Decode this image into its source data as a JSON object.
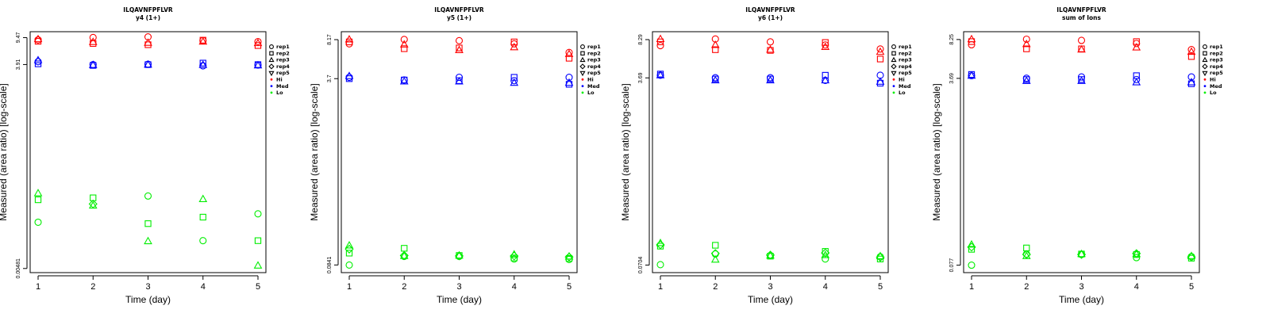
{
  "colors": {
    "Hi": "#ff0000",
    "Med": "#0000ff",
    "Lo": "#00ee00"
  },
  "legend": {
    "reps": [
      {
        "label": "rep1",
        "shape": "circle"
      },
      {
        "label": "rep2",
        "shape": "square"
      },
      {
        "label": "rep3",
        "shape": "triangle-up"
      },
      {
        "label": "rep4",
        "shape": "diamond"
      },
      {
        "label": "rep5",
        "shape": "triangle-down"
      }
    ],
    "groups": [
      {
        "label": "Hi",
        "color": "#ff0000"
      },
      {
        "label": "Med",
        "color": "#0000ff"
      },
      {
        "label": "Lo",
        "color": "#00ee00"
      }
    ]
  },
  "chart_data": [
    {
      "type": "scatter",
      "title": "ILQAVNFPFLVR",
      "subtitle": "y4 (1+)",
      "xlabel": "Time (day)",
      "ylabel": "Measured (area ratio) [log-scale]",
      "x_ticks": [
        "1",
        "2",
        "3",
        "4",
        "5"
      ],
      "y_ticks": [
        "9.47",
        "3.91",
        "0.00481"
      ],
      "y_scale": "log",
      "ylim": [
        0.0042,
        11.5
      ],
      "series": [
        {
          "group": "Hi",
          "shape": "circle",
          "x": [
            1,
            2,
            3,
            4,
            5
          ],
          "y": [
            8.8,
            9.5,
            9.7,
            8.6,
            8.3
          ]
        },
        {
          "group": "Hi",
          "shape": "square",
          "x": [
            1,
            2,
            3,
            4,
            5
          ],
          "y": [
            8.4,
            7.8,
            7.5,
            8.7,
            7.3
          ]
        },
        {
          "group": "Hi",
          "shape": "triangle-up",
          "x": [
            1,
            2,
            3,
            4,
            5
          ],
          "y": [
            9.0,
            8.2,
            8.0,
            8.3,
            7.9
          ]
        },
        {
          "group": "Med",
          "shape": "circle",
          "x": [
            1,
            2,
            3,
            4,
            5
          ],
          "y": [
            4.3,
            3.9,
            3.95,
            3.75,
            3.85
          ]
        },
        {
          "group": "Med",
          "shape": "square",
          "x": [
            1,
            2,
            3,
            4,
            5
          ],
          "y": [
            4.0,
            3.8,
            3.9,
            4.1,
            3.9
          ]
        },
        {
          "group": "Med",
          "shape": "triangle-up",
          "x": [
            1,
            2,
            3,
            4,
            5
          ],
          "y": [
            4.5,
            3.85,
            3.9,
            3.85,
            3.8
          ]
        },
        {
          "group": "Lo",
          "shape": "circle",
          "x": [
            1,
            3,
            4,
            5
          ],
          "y": [
            0.022,
            0.052,
            0.012,
            0.029
          ]
        },
        {
          "group": "Lo",
          "shape": "square",
          "x": [
            1,
            2,
            3,
            4,
            5
          ],
          "y": [
            0.046,
            0.049,
            0.021,
            0.026,
            0.012
          ]
        },
        {
          "group": "Lo",
          "shape": "triangle-up",
          "x": [
            1,
            2,
            3,
            4,
            5
          ],
          "y": [
            0.057,
            0.038,
            0.0118,
            0.047,
            0.0053
          ]
        },
        {
          "group": "Lo",
          "shape": "diamond",
          "x": [
            2
          ],
          "y": [
            0.04
          ]
        }
      ]
    },
    {
      "type": "scatter",
      "title": "ILQAVNFPFLVR",
      "subtitle": "y5 (1+)",
      "xlabel": "Time (day)",
      "ylabel": "Measured (area ratio) [log-scale]",
      "x_ticks": [
        "1",
        "2",
        "3",
        "4",
        "5"
      ],
      "y_ticks": [
        "8.17",
        "3.7",
        "0.0841"
      ],
      "y_scale": "log",
      "ylim": [
        0.072,
        9.6
      ],
      "series": [
        {
          "group": "Hi",
          "shape": "circle",
          "x": [
            1,
            2,
            3,
            4,
            5
          ],
          "y": [
            7.5,
            8.2,
            8.0,
            7.5,
            6.3
          ]
        },
        {
          "group": "Hi",
          "shape": "square",
          "x": [
            1,
            2,
            3,
            4,
            5
          ],
          "y": [
            7.8,
            6.8,
            6.9,
            7.8,
            5.6
          ]
        },
        {
          "group": "Hi",
          "shape": "triangle-up",
          "x": [
            1,
            2,
            3,
            4,
            5
          ],
          "y": [
            8.2,
            7.4,
            6.6,
            7.0,
            6.1
          ]
        },
        {
          "group": "Med",
          "shape": "circle",
          "x": [
            1,
            2,
            3,
            4,
            5
          ],
          "y": [
            3.8,
            3.6,
            3.8,
            3.55,
            3.8
          ]
        },
        {
          "group": "Med",
          "shape": "square",
          "x": [
            1,
            2,
            3,
            4,
            5
          ],
          "y": [
            3.7,
            3.6,
            3.55,
            3.8,
            3.3
          ]
        },
        {
          "group": "Med",
          "shape": "triangle-up",
          "x": [
            1,
            2,
            3,
            4,
            5
          ],
          "y": [
            3.9,
            3.5,
            3.5,
            3.4,
            3.4
          ]
        },
        {
          "group": "Lo",
          "shape": "circle",
          "x": [
            1,
            2,
            3,
            4,
            5
          ],
          "y": [
            0.084,
            0.1,
            0.1,
            0.095,
            0.094
          ]
        },
        {
          "group": "Lo",
          "shape": "square",
          "x": [
            1,
            2,
            3,
            4,
            5
          ],
          "y": [
            0.107,
            0.118,
            0.102,
            0.097,
            0.096
          ]
        },
        {
          "group": "Lo",
          "shape": "triangle-up",
          "x": [
            1,
            2,
            3,
            4,
            5
          ],
          "y": [
            0.125,
            0.101,
            0.102,
            0.104,
            0.1
          ]
        },
        {
          "group": "Lo",
          "shape": "diamond",
          "x": [
            1,
            2,
            3,
            4,
            5
          ],
          "y": [
            0.116,
            0.102,
            0.101,
            0.101,
            0.099
          ]
        }
      ]
    },
    {
      "type": "scatter",
      "title": "ILQAVNFPFLVR",
      "subtitle": "y6 (1+)",
      "xlabel": "Time (day)",
      "ylabel": "Measured (area ratio) [log-scale]",
      "x_ticks": [
        "1",
        "2",
        "3",
        "4",
        "5"
      ],
      "y_ticks": [
        "8.29",
        "3.69",
        "0.0704"
      ],
      "y_scale": "log",
      "ylim": [
        0.06,
        9.8
      ],
      "series": [
        {
          "group": "Hi",
          "shape": "circle",
          "x": [
            1,
            2,
            3,
            4,
            5
          ],
          "y": [
            7.3,
            8.4,
            7.9,
            7.4,
            6.8
          ]
        },
        {
          "group": "Hi",
          "shape": "square",
          "x": [
            1,
            2,
            3,
            4,
            5
          ],
          "y": [
            7.9,
            6.7,
            6.6,
            7.8,
            5.5
          ]
        },
        {
          "group": "Hi",
          "shape": "triangle-up",
          "x": [
            1,
            2,
            3,
            4,
            5
          ],
          "y": [
            8.4,
            7.4,
            6.7,
            7.1,
            6.4
          ]
        },
        {
          "group": "Med",
          "shape": "circle",
          "x": [
            1,
            2,
            3,
            4,
            5
          ],
          "y": [
            3.9,
            3.7,
            3.7,
            3.5,
            3.9
          ]
        },
        {
          "group": "Med",
          "shape": "square",
          "x": [
            1,
            2,
            3,
            4,
            5
          ],
          "y": [
            4.0,
            3.6,
            3.6,
            3.9,
            3.3
          ]
        },
        {
          "group": "Med",
          "shape": "triangle-up",
          "x": [
            1,
            2,
            3,
            4,
            5
          ],
          "y": [
            3.9,
            3.5,
            3.5,
            3.5,
            3.4
          ]
        },
        {
          "group": "Lo",
          "shape": "circle",
          "x": [
            1,
            2,
            3,
            4,
            5
          ],
          "y": [
            0.071,
            0.089,
            0.086,
            0.08,
            0.084
          ]
        },
        {
          "group": "Lo",
          "shape": "square",
          "x": [
            1,
            2,
            3,
            4,
            5
          ],
          "y": [
            0.105,
            0.107,
            0.085,
            0.094,
            0.08
          ]
        },
        {
          "group": "Lo",
          "shape": "triangle-up",
          "x": [
            1,
            2,
            3,
            4,
            5
          ],
          "y": [
            0.112,
            0.079,
            0.086,
            0.087,
            0.085
          ]
        },
        {
          "group": "Lo",
          "shape": "diamond",
          "x": [
            1,
            2,
            3,
            4,
            5
          ],
          "y": [
            0.108,
            0.09,
            0.087,
            0.091,
            0.083
          ]
        }
      ]
    },
    {
      "type": "scatter",
      "title": "ILQAVNFPFLVR",
      "subtitle": "sum of Ions",
      "xlabel": "Time (day)",
      "ylabel": "Measured (area ratio) [log-scale]",
      "x_ticks": [
        "1",
        "2",
        "3",
        "4",
        "5"
      ],
      "y_ticks": [
        "8.25",
        "3.69",
        "0.077"
      ],
      "y_scale": "log",
      "ylim": [
        0.066,
        9.7
      ],
      "series": [
        {
          "group": "Hi",
          "shape": "circle",
          "x": [
            1,
            2,
            3,
            4,
            5
          ],
          "y": [
            7.4,
            8.3,
            8.1,
            7.6,
            6.7
          ]
        },
        {
          "group": "Hi",
          "shape": "square",
          "x": [
            1,
            2,
            3,
            4,
            5
          ],
          "y": [
            7.9,
            6.8,
            6.8,
            7.9,
            5.8
          ]
        },
        {
          "group": "Hi",
          "shape": "triangle-up",
          "x": [
            1,
            2,
            3,
            4,
            5
          ],
          "y": [
            8.3,
            7.5,
            6.7,
            7.0,
            6.4
          ]
        },
        {
          "group": "Med",
          "shape": "circle",
          "x": [
            1,
            2,
            3,
            4,
            5
          ],
          "y": [
            3.9,
            3.7,
            3.8,
            3.6,
            3.8
          ]
        },
        {
          "group": "Med",
          "shape": "square",
          "x": [
            1,
            2,
            3,
            4,
            5
          ],
          "y": [
            4.0,
            3.6,
            3.6,
            3.9,
            3.3
          ]
        },
        {
          "group": "Med",
          "shape": "triangle-up",
          "x": [
            1,
            2,
            3,
            4,
            5
          ],
          "y": [
            3.9,
            3.5,
            3.5,
            3.4,
            3.4
          ]
        },
        {
          "group": "Lo",
          "shape": "circle",
          "x": [
            1,
            2,
            3,
            4,
            5
          ],
          "y": [
            0.077,
            0.097,
            0.096,
            0.09,
            0.092
          ]
        },
        {
          "group": "Lo",
          "shape": "square",
          "x": [
            1,
            2,
            3,
            4,
            5
          ],
          "y": [
            0.107,
            0.11,
            0.097,
            0.096,
            0.089
          ]
        },
        {
          "group": "Lo",
          "shape": "triangle-up",
          "x": [
            1,
            2,
            3,
            4,
            5
          ],
          "y": [
            0.118,
            0.093,
            0.097,
            0.097,
            0.093
          ]
        },
        {
          "group": "Lo",
          "shape": "diamond",
          "x": [
            1,
            2,
            3,
            4,
            5
          ],
          "y": [
            0.112,
            0.096,
            0.096,
            0.098,
            0.091
          ]
        }
      ]
    }
  ]
}
